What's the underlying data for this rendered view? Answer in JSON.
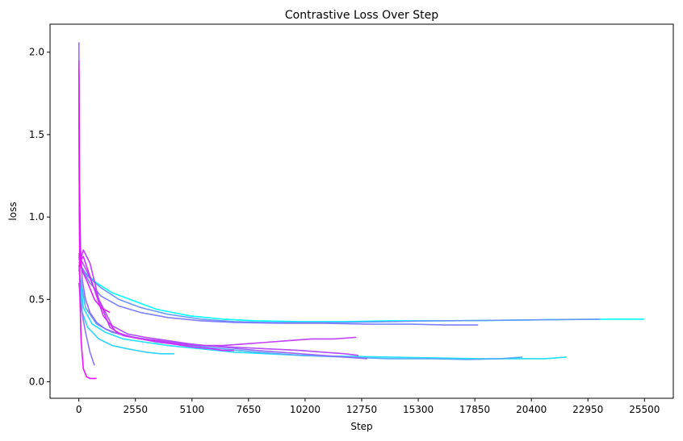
{
  "chart_data": {
    "type": "line",
    "title": "Contrastive Loss Over Step",
    "xlabel": "Step",
    "ylabel": "loss",
    "xlim": [
      -1300,
      26800
    ],
    "ylim": [
      -0.1,
      2.17
    ],
    "xticks": [
      0,
      2550,
      5100,
      7650,
      10200,
      12750,
      15300,
      17850,
      20400,
      22950,
      25500
    ],
    "xtick_labels": [
      "0",
      "2550",
      "5100",
      "7650",
      "10200",
      "12750",
      "15300",
      "17850",
      "20400",
      "22950",
      "25500"
    ],
    "yticks": [
      0.0,
      0.5,
      1.0,
      1.5,
      2.0
    ],
    "ytick_labels": [
      "0.0",
      "0.5",
      "1.0",
      "1.5",
      "2.0"
    ],
    "grid": false,
    "legend": "none",
    "series": [
      {
        "color": "#00ffff",
        "x": [
          0,
          100,
          300,
          800,
          1500,
          2500,
          3500,
          5000,
          6500,
          8000,
          10000,
          12000,
          14000,
          16000,
          18000,
          20000,
          22000,
          24000,
          25500
        ],
        "y": [
          0.75,
          0.7,
          0.66,
          0.6,
          0.54,
          0.49,
          0.44,
          0.4,
          0.38,
          0.37,
          0.365,
          0.365,
          0.37,
          0.37,
          0.372,
          0.375,
          0.378,
          0.38,
          0.38
        ]
      },
      {
        "color": "#20dfff",
        "x": [
          0,
          200,
          600,
          1200,
          2000,
          3000,
          4000,
          5500,
          7000,
          8500,
          10000,
          12000,
          14000,
          16000,
          18000,
          20000,
          21000,
          22000
        ],
        "y": [
          0.7,
          0.45,
          0.35,
          0.3,
          0.26,
          0.24,
          0.22,
          0.2,
          0.18,
          0.17,
          0.16,
          0.155,
          0.15,
          0.145,
          0.14,
          0.14,
          0.14,
          0.15
        ]
      },
      {
        "color": "#2bd4ff",
        "x": [
          0,
          150,
          400,
          900,
          1500,
          2200,
          3000,
          3700,
          4300
        ],
        "y": [
          0.7,
          0.42,
          0.33,
          0.26,
          0.22,
          0.2,
          0.18,
          0.17,
          0.17
        ]
      },
      {
        "color": "#55aaff",
        "x": [
          0,
          300,
          800,
          1500,
          2500,
          3500,
          5000,
          6500,
          8000,
          10000,
          12000,
          14000,
          16000,
          17500,
          19000,
          20000
        ],
        "y": [
          0.68,
          0.45,
          0.35,
          0.3,
          0.27,
          0.24,
          0.22,
          0.2,
          0.18,
          0.16,
          0.15,
          0.14,
          0.14,
          0.135,
          0.14,
          0.15
        ]
      },
      {
        "color": "#6a95ff",
        "x": [
          0,
          100,
          400,
          1000,
          1800,
          2800,
          4000,
          5500,
          7000,
          8500,
          10000,
          12000,
          14000,
          16000,
          18000,
          20000,
          22000,
          23500
        ],
        "y": [
          0.77,
          0.7,
          0.64,
          0.57,
          0.5,
          0.45,
          0.41,
          0.38,
          0.365,
          0.36,
          0.36,
          0.36,
          0.365,
          0.37,
          0.372,
          0.375,
          0.378,
          0.38
        ]
      },
      {
        "color": "#7f80ff",
        "x": [
          0,
          150,
          500,
          1000,
          1800,
          2800,
          4000,
          5500,
          7000,
          9000,
          11000,
          13000,
          15000,
          16500,
          18000
        ],
        "y": [
          0.76,
          0.68,
          0.6,
          0.52,
          0.46,
          0.42,
          0.39,
          0.37,
          0.36,
          0.355,
          0.355,
          0.35,
          0.35,
          0.345,
          0.345
        ]
      },
      {
        "color": "#8a75ff",
        "x": [
          0,
          100,
          300,
          500,
          700
        ],
        "y": [
          0.6,
          0.45,
          0.3,
          0.18,
          0.1
        ]
      },
      {
        "color": "#9a65ff",
        "x": [
          0,
          30,
          80,
          150,
          300,
          500,
          800,
          1200,
          1800,
          2500,
          3500,
          5000,
          6500,
          8000,
          10000,
          12000,
          13000
        ],
        "y": [
          2.06,
          1.2,
          0.8,
          0.62,
          0.5,
          0.42,
          0.36,
          0.32,
          0.29,
          0.27,
          0.25,
          0.23,
          0.21,
          0.19,
          0.17,
          0.15,
          0.14
        ]
      },
      {
        "color": "#b44bff",
        "x": [
          0,
          100,
          400,
          900,
          1500,
          2200,
          3000,
          4000,
          5500,
          7000,
          8500,
          10000,
          11000,
          12000,
          12600
        ],
        "y": [
          0.78,
          0.74,
          0.66,
          0.5,
          0.34,
          0.29,
          0.27,
          0.25,
          0.22,
          0.21,
          0.2,
          0.19,
          0.18,
          0.17,
          0.16
        ]
      },
      {
        "color": "#c03fff",
        "x": [
          0,
          200,
          500,
          900,
          1400,
          2000,
          2800,
          3600,
          4500,
          5500,
          6500,
          7500,
          8500,
          9500,
          10500,
          11500,
          12500
        ],
        "y": [
          0.7,
          0.8,
          0.72,
          0.5,
          0.33,
          0.28,
          0.26,
          0.25,
          0.23,
          0.22,
          0.22,
          0.23,
          0.24,
          0.25,
          0.26,
          0.26,
          0.27
        ]
      },
      {
        "color": "#d12eff",
        "x": [
          0,
          200,
          600,
          1100,
          1700,
          2400,
          3200,
          4200,
          5200,
          6000,
          6500,
          7000
        ],
        "y": [
          0.72,
          0.76,
          0.6,
          0.4,
          0.3,
          0.27,
          0.25,
          0.23,
          0.21,
          0.2,
          0.19,
          0.19
        ]
      },
      {
        "color": "#e01fff",
        "x": [
          0,
          20,
          50,
          100,
          200,
          400,
          700,
          1000,
          1400
        ],
        "y": [
          1.95,
          1.2,
          0.85,
          0.7,
          0.66,
          0.6,
          0.5,
          0.45,
          0.42
        ]
      },
      {
        "color": "#f00fff",
        "x": [
          0,
          20,
          50,
          100,
          200,
          350,
          500,
          700,
          800
        ],
        "y": [
          1.9,
          1.0,
          0.5,
          0.25,
          0.08,
          0.03,
          0.02,
          0.02,
          0.02
        ]
      }
    ]
  }
}
